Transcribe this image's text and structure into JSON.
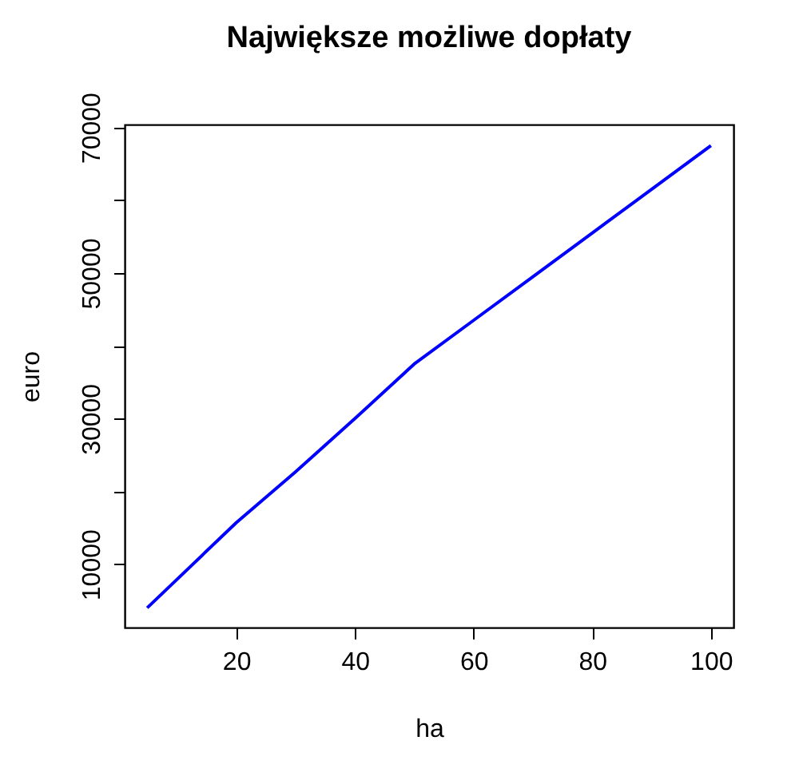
{
  "chart_data": {
    "type": "line",
    "title": "Największe możliwe dopłaty",
    "xlabel": "ha",
    "ylabel": "euro",
    "x": [
      5,
      10,
      20,
      30,
      40,
      50,
      60,
      70,
      80,
      90,
      100
    ],
    "series": [
      {
        "color": "#0000ff",
        "values": [
          4000,
          7900,
          15700,
          22700,
          30000,
          37500,
          43500,
          49500,
          55500,
          61500,
          67500
        ]
      }
    ],
    "xlim": [
      1.2,
      103.8
    ],
    "ylim": [
      1300,
      70400
    ],
    "xticks": [
      20,
      40,
      60,
      80,
      100
    ],
    "yticks": [
      10000,
      {
        "value": 20000,
        "label": null
      },
      30000,
      {
        "value": 40000,
        "label": null
      },
      50000,
      {
        "value": 60000,
        "label": null
      },
      70000
    ],
    "grid": false,
    "marker": "none",
    "line_style": "solid"
  }
}
